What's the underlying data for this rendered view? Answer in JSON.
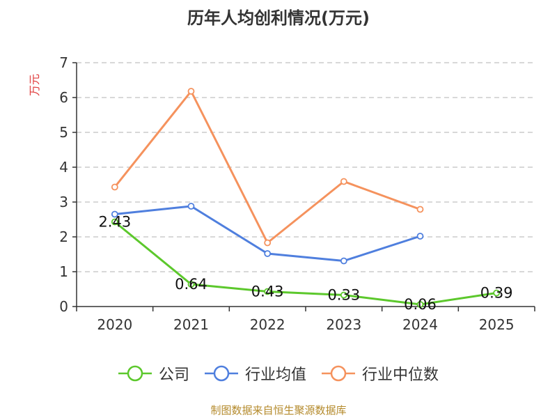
{
  "chart_data": {
    "type": "line",
    "title": "历年人均创利情况(万元)",
    "ylabel": "万元",
    "xlabel": "",
    "categories": [
      "2020",
      "2021",
      "2022",
      "2023",
      "2024",
      "2025"
    ],
    "ylim": [
      0,
      7
    ],
    "yticks": [
      0,
      1,
      2,
      3,
      4,
      5,
      6,
      7
    ],
    "grid": true,
    "legend_position": "bottom",
    "series": [
      {
        "name": "公司",
        "color": "#5cc82c",
        "values": [
          2.43,
          0.64,
          0.43,
          0.33,
          0.06,
          0.39
        ],
        "data_labels": [
          "2.43",
          "0.64",
          "0.43",
          "0.33",
          "0.06",
          "0.39"
        ]
      },
      {
        "name": "行业均值",
        "color": "#4f7fde",
        "values": [
          2.65,
          2.88,
          1.52,
          1.31,
          2.02,
          null
        ]
      },
      {
        "name": "行业中位数",
        "color": "#f5925d",
        "values": [
          3.43,
          6.18,
          1.83,
          3.59,
          2.79,
          null
        ]
      }
    ]
  },
  "source_note": "制图数据来自恒生聚源数据库"
}
